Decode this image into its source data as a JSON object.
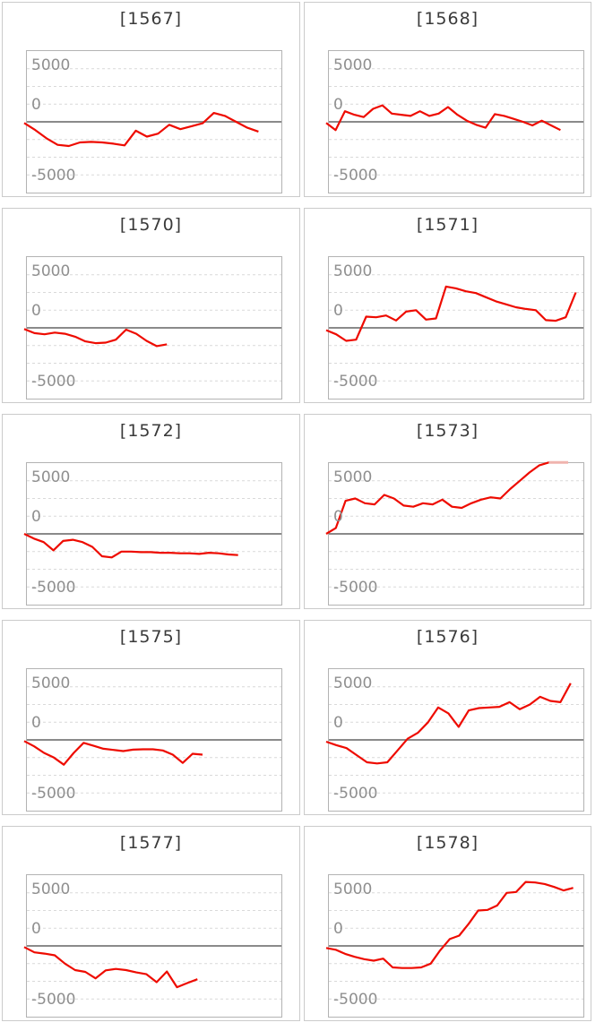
{
  "axis": {
    "labels": [
      "5000",
      "0",
      "-5000"
    ],
    "y_min": -6000,
    "y_max": 6000,
    "grid_step": 1500,
    "grid_on": true
  },
  "colors": {
    "line": "#ee0b00",
    "line_saturated": "#f0b4ae",
    "zero_line": "#8a8a8a",
    "grid": "#d9d9d9",
    "plot_border": "#b3b3b3",
    "card_border": "#cbcbcb",
    "axis_label": "#8f8f8f",
    "title": "#3a3a3a"
  },
  "chart_data": [
    {
      "type": "line",
      "title": "[1567]",
      "ylim": [
        -6000,
        6000
      ],
      "yticks": [
        5000,
        0,
        -5000
      ],
      "legend": "none",
      "end_fraction": 0.91,
      "values": [
        -100,
        -700,
        -1400,
        -1950,
        -2050,
        -1750,
        -1700,
        -1750,
        -1850,
        -2000,
        -750,
        -1250,
        -1000,
        -250,
        -625,
        -375,
        -125,
        750,
        500,
        0,
        -500,
        -825
      ]
    },
    {
      "type": "line",
      "title": "[1568]",
      "ylim": [
        -6000,
        6000
      ],
      "yticks": [
        5000,
        0,
        -5000
      ],
      "legend": "none",
      "end_fraction": 0.91,
      "values": [
        -100,
        -700,
        900,
        600,
        400,
        1100,
        1400,
        700,
        600,
        500,
        900,
        500,
        700,
        1250,
        600,
        100,
        -250,
        -500,
        650,
        500,
        250,
        0,
        -300,
        100,
        -300,
        -700
      ]
    },
    {
      "type": "line",
      "title": "[1570]",
      "ylim": [
        -6000,
        6000
      ],
      "yticks": [
        5000,
        0,
        -5000
      ],
      "legend": "none",
      "end_fraction": 0.55,
      "values": [
        -100,
        -450,
        -550,
        -400,
        -500,
        -750,
        -1150,
        -1300,
        -1250,
        -1000,
        -150,
        -500,
        -1100,
        -1550,
        -1400
      ]
    },
    {
      "type": "line",
      "title": "[1571]",
      "ylim": [
        -6000,
        6000
      ],
      "yticks": [
        5000,
        0,
        -5000
      ],
      "legend": "none",
      "end_fraction": 0.97,
      "values": [
        -200,
        -550,
        -1100,
        -1000,
        950,
        900,
        1050,
        625,
        1375,
        1500,
        700,
        800,
        3500,
        3350,
        3100,
        2950,
        2600,
        2250,
        2000,
        1750,
        1600,
        1500,
        650,
        600,
        900,
        3000
      ]
    },
    {
      "type": "line",
      "title": "[1572]",
      "ylim": [
        -6000,
        6000
      ],
      "yticks": [
        5000,
        0,
        -5000
      ],
      "legend": "none",
      "end_fraction": 0.83,
      "values": [
        0,
        -400,
        -700,
        -1400,
        -600,
        -500,
        -700,
        -1100,
        -1900,
        -2000,
        -1500,
        -1500,
        -1550,
        -1550,
        -1600,
        -1600,
        -1650,
        -1650,
        -1700,
        -1600,
        -1650,
        -1750,
        -1800
      ]
    },
    {
      "type": "line",
      "title": "[1573]",
      "ylim": [
        -6000,
        6000
      ],
      "yticks": [
        5000,
        0,
        -5000
      ],
      "legend": "none",
      "end_fraction": 0.94,
      "values": [
        0,
        500,
        2800,
        3000,
        2600,
        2500,
        3300,
        3000,
        2400,
        2300,
        2600,
        2500,
        2900,
        2300,
        2200,
        2600,
        2900,
        3100,
        3000,
        3800,
        4500,
        5200,
        5800,
        6050,
        6050,
        6050
      ]
    },
    {
      "type": "line",
      "title": "[1575]",
      "ylim": [
        -6000,
        6000
      ],
      "yticks": [
        5000,
        0,
        -5000
      ],
      "legend": "none",
      "end_fraction": 0.69,
      "values": [
        -100,
        -550,
        -1100,
        -1500,
        -2100,
        -1100,
        -250,
        -500,
        -750,
        -850,
        -950,
        -825,
        -800,
        -800,
        -900,
        -1250,
        -1950,
        -1175,
        -1250
      ]
    },
    {
      "type": "line",
      "title": "[1576]",
      "ylim": [
        -6000,
        6000
      ],
      "yticks": [
        5000,
        0,
        -5000
      ],
      "legend": "none",
      "end_fraction": 0.95,
      "values": [
        -150,
        -450,
        -700,
        -1300,
        -1900,
        -2000,
        -1900,
        -900,
        100,
        600,
        1500,
        2750,
        2250,
        1100,
        2500,
        2700,
        2750,
        2800,
        3200,
        2600,
        3000,
        3650,
        3300,
        3200,
        4800
      ]
    },
    {
      "type": "line",
      "title": "[1577]",
      "ylim": [
        -6000,
        6000
      ],
      "yticks": [
        5000,
        0,
        -5000
      ],
      "legend": "none",
      "end_fraction": 0.67,
      "values": [
        -100,
        -550,
        -650,
        -800,
        -1500,
        -2050,
        -2200,
        -2750,
        -2075,
        -1950,
        -2050,
        -2250,
        -2400,
        -3075,
        -2175,
        -3500,
        -3150,
        -2825
      ]
    },
    {
      "type": "line",
      "title": "[1578]",
      "ylim": [
        -6000,
        6000
      ],
      "yticks": [
        5000,
        0,
        -5000
      ],
      "legend": "none",
      "end_fraction": 0.96,
      "values": [
        -175,
        -325,
        -675,
        -925,
        -1125,
        -1250,
        -1075,
        -1825,
        -1875,
        -1875,
        -1825,
        -1500,
        -375,
        575,
        875,
        1875,
        3000,
        3050,
        3425,
        4500,
        4575,
        5425,
        5375,
        5250,
        5000,
        4700,
        4925
      ]
    }
  ]
}
